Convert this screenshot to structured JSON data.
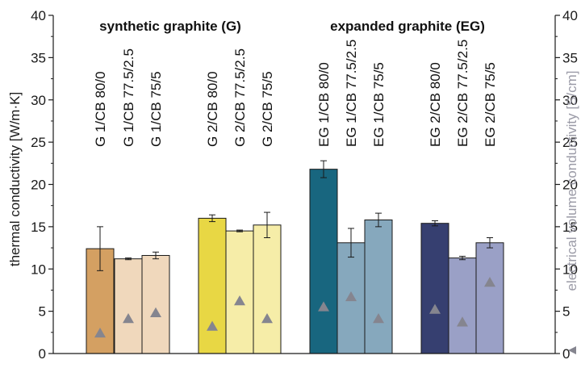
{
  "chart_data": {
    "type": "bar",
    "ylabel": "thermal conductivity [W/m·K]",
    "y2label": "electrical volume conductivity [S/cm]",
    "y2_marker": "▲",
    "ylim": [
      0,
      40
    ],
    "y2lim": [
      0,
      40
    ],
    "yticks": [
      0,
      5,
      10,
      15,
      20,
      25,
      30,
      35,
      40
    ],
    "y2ticks": [
      0,
      5,
      10,
      15,
      20,
      25,
      30,
      35,
      40
    ],
    "grid": false,
    "groups": [
      "synthetic graphite (G)",
      "expanded graphite (EG)"
    ],
    "categories": [
      "G 1/CB 80/0",
      "G 1/CB 77.5/2.5",
      "G 1/CB 75/5",
      "G 2/CB 80/0",
      "G 2/CB 77.5/2.5",
      "G 2/CB 75/5",
      "EG 1/CB 80/0",
      "EG 1/CB 77.5/2.5",
      "EG 1/CB 75/5",
      "EG 2/CB 80/0",
      "EG 2/CB 77.5/2.5",
      "EG 2/CB 75/5"
    ],
    "series": [
      {
        "values": [
          12.4,
          11.2,
          11.6,
          16.0,
          14.5,
          15.2,
          21.8,
          13.1,
          15.8,
          15.4,
          11.3,
          13.1
        ],
        "errors": [
          2.6,
          0.1,
          0.4,
          0.4,
          0.1,
          1.5,
          1.0,
          1.7,
          0.8,
          0.3,
          0.2,
          0.6
        ],
        "colors": [
          "#d4a062",
          "#f0d8bc",
          "#f0d8bc",
          "#e8d744",
          "#f6eda8",
          "#f6eda8",
          "#18667f",
          "#86a8bd",
          "#86a8bd",
          "#363f70",
          "#9aa0c6",
          "#9aa0c6"
        ]
      },
      {
        "values": [
          2.4,
          4.1,
          4.8,
          3.2,
          6.2,
          4.1,
          5.5,
          6.7,
          4.1,
          5.2,
          3.7,
          8.4
        ],
        "color": "#85858f"
      }
    ]
  }
}
